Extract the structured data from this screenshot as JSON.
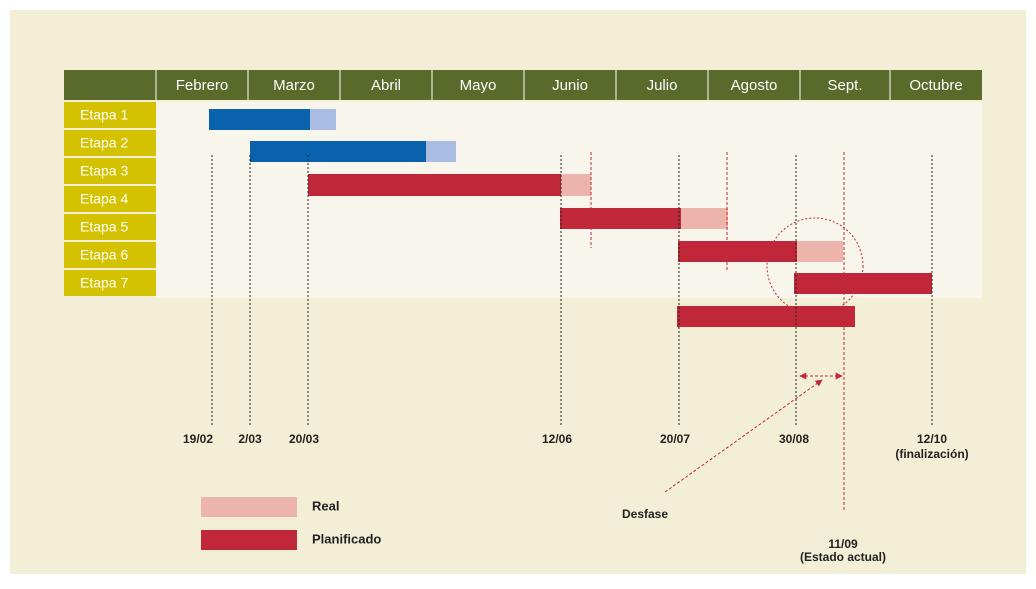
{
  "header": {
    "months": [
      "Febrero",
      "Marzo",
      "Abril",
      "Mayo",
      "Junio",
      "Julio",
      "Agosto",
      "Sept.",
      "Octubre"
    ]
  },
  "stages": [
    "Etapa 1",
    "Etapa 2",
    "Etapa 3",
    "Etapa 4",
    "Etapa 5",
    "Etapa 6",
    "Etapa 7"
  ],
  "dates": [
    "19/02",
    "2/03",
    "20/03",
    "12/06",
    "20/07",
    "30/08",
    "12/10"
  ],
  "end_note": "(finalización)",
  "current": {
    "date": "11/09",
    "note": "(Estado actual)"
  },
  "annotation": "Desfase",
  "legend": [
    "Real",
    "Planificado"
  ]
}
